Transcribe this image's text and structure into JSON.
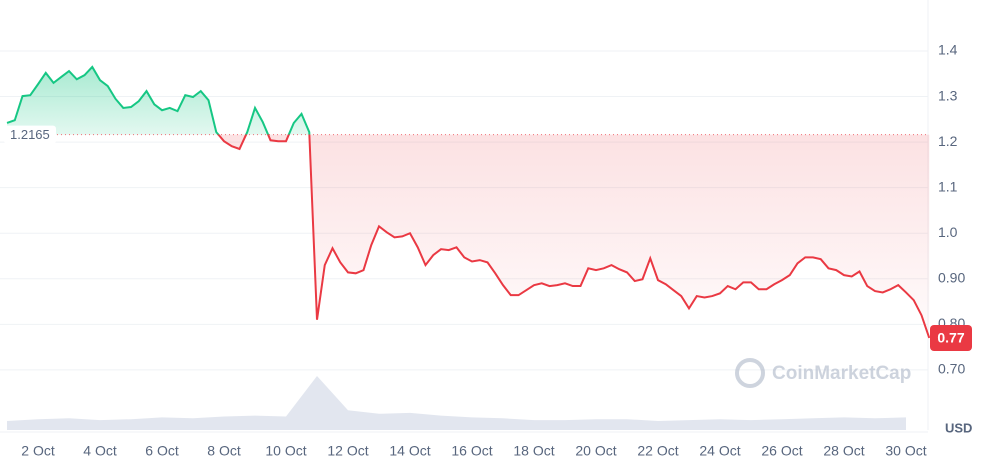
{
  "chart_data": {
    "type": "line",
    "baseline": 1.2165,
    "currency": "USD",
    "watermark": "CoinMarketCap",
    "up_color": "#16c784",
    "down_color": "#ea3943",
    "grid": true,
    "xlim": [
      0.935,
      30.71
    ],
    "ylim": [
      0.568,
      1.501
    ],
    "xticks": [
      {
        "value": 2,
        "label": "2 Oct"
      },
      {
        "value": 4,
        "label": "4 Oct"
      },
      {
        "value": 6,
        "label": "6 Oct"
      },
      {
        "value": 8,
        "label": "8 Oct"
      },
      {
        "value": 10,
        "label": "10 Oct"
      },
      {
        "value": 12,
        "label": "12 Oct"
      },
      {
        "value": 14,
        "label": "14 Oct"
      },
      {
        "value": 16,
        "label": "16 Oct"
      },
      {
        "value": 18,
        "label": "18 Oct"
      },
      {
        "value": 20,
        "label": "20 Oct"
      },
      {
        "value": 22,
        "label": "22 Oct"
      },
      {
        "value": 24,
        "label": "24 Oct"
      },
      {
        "value": 26,
        "label": "26 Oct"
      },
      {
        "value": 28,
        "label": "28 Oct"
      },
      {
        "value": 30,
        "label": "30 Oct"
      }
    ],
    "yticks": [
      1.4,
      1.3,
      1.2,
      1.1,
      {
        "value": 1.0,
        "label": "1.0"
      },
      {
        "value": 0.9,
        "label": "0.90"
      },
      {
        "value": 0.8,
        "label": "0.80"
      },
      {
        "value": 0.7,
        "label": "0.70"
      }
    ],
    "x": [
      1,
      1.25,
      1.5,
      1.75,
      2,
      2.25,
      2.5,
      2.75,
      3,
      3.25,
      3.5,
      3.75,
      4,
      4.25,
      4.5,
      4.75,
      5,
      5.25,
      5.5,
      5.75,
      6,
      6.25,
      6.5,
      6.75,
      7,
      7.25,
      7.5,
      7.75,
      8,
      8.25,
      8.5,
      8.75,
      9,
      9.25,
      9.5,
      9.75,
      10,
      10.25,
      10.5,
      10.75,
      11,
      11.25,
      11.5,
      11.75,
      12,
      12.25,
      12.5,
      12.75,
      13,
      13.25,
      13.5,
      13.75,
      14,
      14.25,
      14.5,
      14.75,
      15,
      15.25,
      15.5,
      15.75,
      16,
      16.25,
      16.5,
      16.75,
      17,
      17.25,
      17.5,
      17.75,
      18,
      18.25,
      18.5,
      18.75,
      19,
      19.25,
      19.5,
      19.75,
      20,
      20.25,
      20.5,
      20.75,
      21,
      21.25,
      21.5,
      21.75,
      22,
      22.25,
      22.5,
      22.75,
      23,
      23.25,
      23.5,
      23.75,
      24,
      24.25,
      24.5,
      24.75,
      25,
      25.25,
      25.5,
      25.75,
      26,
      26.25,
      26.5,
      26.75,
      27,
      27.25,
      27.5,
      27.75,
      28,
      28.25,
      28.5,
      28.75,
      29,
      29.25,
      29.5,
      29.75,
      30,
      30.25,
      30.5,
      30.75
    ],
    "values": [
      1.242,
      1.248,
      1.301,
      1.303,
      1.327,
      1.352,
      1.33,
      1.343,
      1.356,
      1.338,
      1.347,
      1.365,
      1.336,
      1.323,
      1.295,
      1.275,
      1.277,
      1.29,
      1.312,
      1.283,
      1.27,
      1.275,
      1.268,
      1.303,
      1.299,
      1.312,
      1.292,
      1.222,
      1.202,
      1.191,
      1.185,
      1.222,
      1.275,
      1.244,
      1.204,
      1.202,
      1.202,
      1.242,
      1.262,
      1.222,
      0.81,
      0.93,
      0.967,
      0.936,
      0.914,
      0.912,
      0.919,
      0.974,
      1.015,
      1.002,
      0.991,
      0.993,
      1.0,
      0.969,
      0.93,
      0.952,
      0.965,
      0.963,
      0.969,
      0.947,
      0.938,
      0.941,
      0.936,
      0.912,
      0.886,
      0.864,
      0.864,
      0.875,
      0.886,
      0.89,
      0.884,
      0.886,
      0.89,
      0.884,
      0.884,
      0.923,
      0.919,
      0.923,
      0.93,
      0.921,
      0.914,
      0.895,
      0.899,
      0.945,
      0.897,
      0.888,
      0.875,
      0.862,
      0.835,
      0.862,
      0.859,
      0.862,
      0.868,
      0.884,
      0.877,
      0.892,
      0.892,
      0.877,
      0.877,
      0.888,
      0.897,
      0.908,
      0.934,
      0.947,
      0.947,
      0.943,
      0.923,
      0.919,
      0.908,
      0.905,
      0.916,
      0.884,
      0.873,
      0.87,
      0.877,
      0.886,
      0.87,
      0.853,
      0.82,
      0.77
    ],
    "volume": {
      "color": "#cfd6e4",
      "ylim": [
        0,
        100
      ],
      "x": [
        1,
        2,
        3,
        4,
        5,
        6,
        7,
        8,
        9,
        10,
        11,
        12,
        13,
        14,
        15,
        16,
        17,
        18,
        19,
        20,
        21,
        22,
        23,
        24,
        25,
        26,
        27,
        28,
        29,
        30
      ],
      "values": [
        10,
        12,
        13,
        11,
        12,
        14,
        13,
        15,
        16,
        15,
        60,
        22,
        18,
        19,
        16,
        14,
        13,
        11,
        11,
        12,
        12,
        10,
        11,
        12,
        11,
        12,
        13,
        14,
        13,
        14
      ]
    }
  }
}
